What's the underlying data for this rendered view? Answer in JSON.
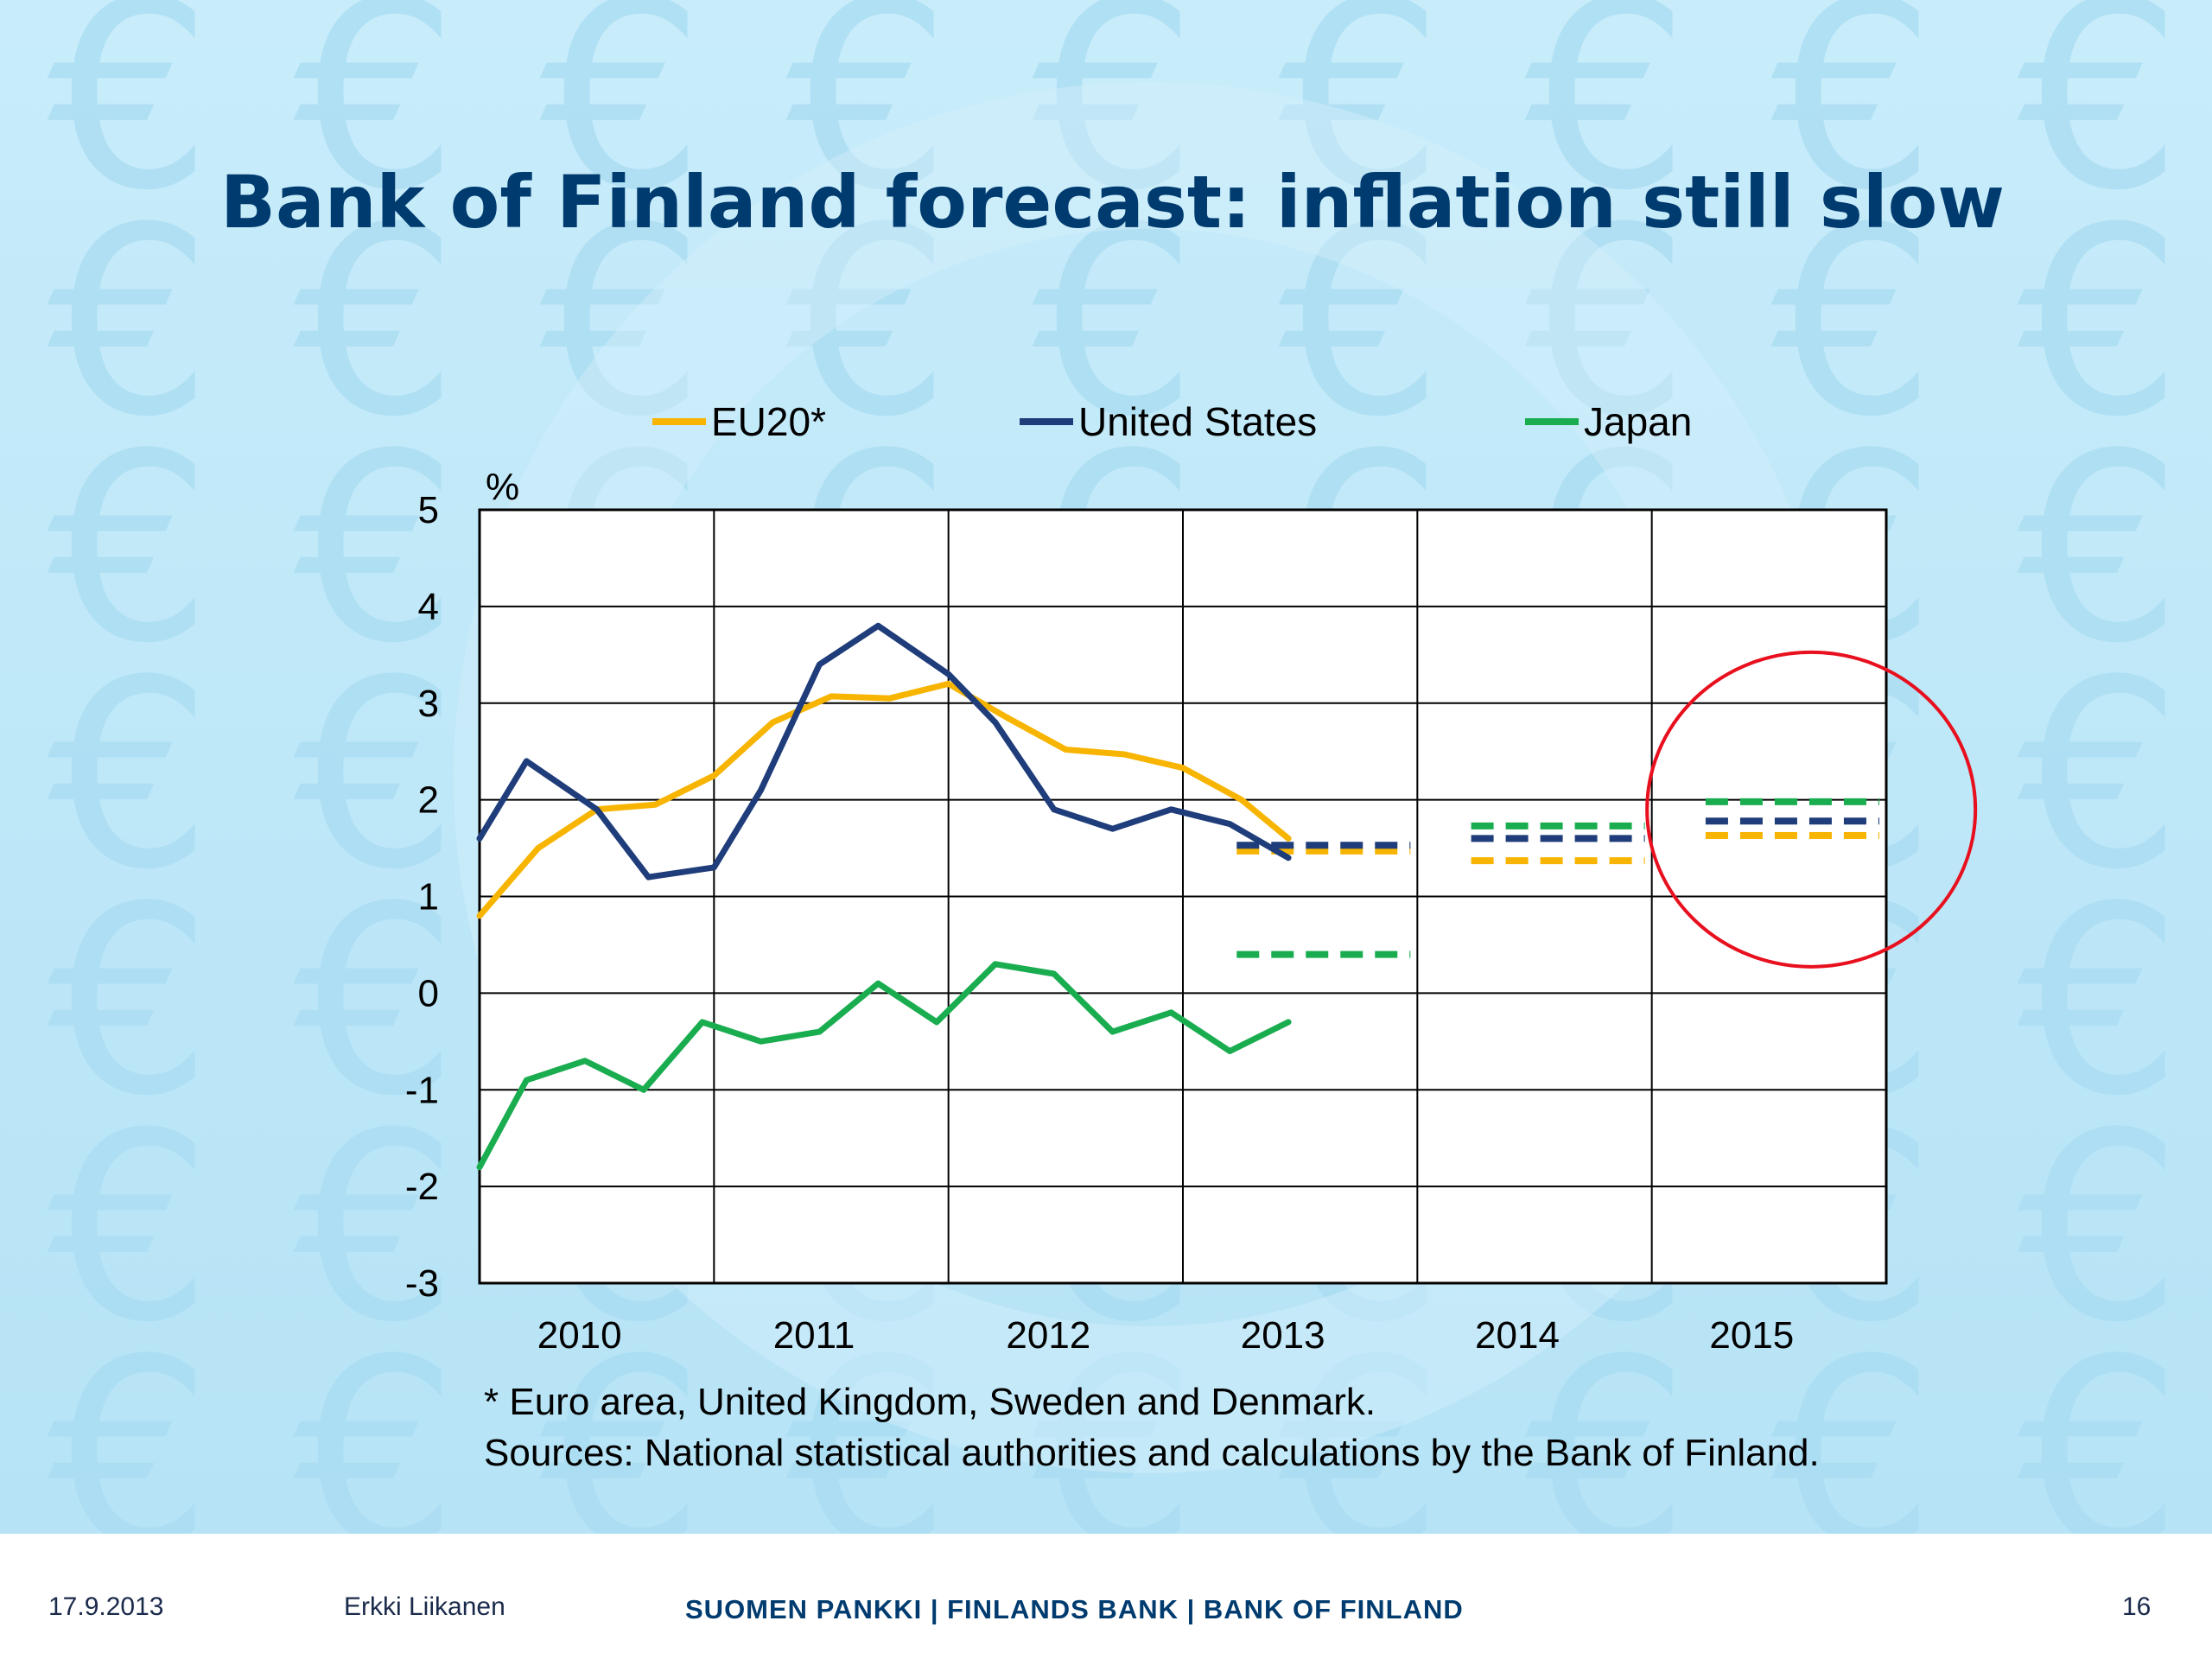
{
  "slide": {
    "title": "Bank of Finland forecast: inflation still slow",
    "footnote": "* Euro area, United Kingdom, Sweden and Denmark.",
    "sources": "Sources: National statistical authorities and calculations by the Bank of Finland."
  },
  "footer": {
    "date": "17.9.2013",
    "author": "Erkki Liikanen",
    "organization": "SUOMEN PANKKI | FINLANDS BANK | BANK OF FINLAND",
    "page_number": "16"
  },
  "background_icon": "euro-sign-pattern",
  "chart_data": {
    "type": "line",
    "title": "",
    "ylabel": "%",
    "xlabel": "",
    "ylim": [
      -3,
      5
    ],
    "xlim": [
      2010,
      2016
    ],
    "yticks": [
      "5",
      "4",
      "3",
      "2",
      "1",
      "0",
      "-1",
      "-2",
      "-3"
    ],
    "xticks": [
      "2010",
      "2011",
      "2012",
      "2013",
      "2014",
      "2015"
    ],
    "grid": true,
    "legend_position": "top",
    "highlight": {
      "type": "circle",
      "around": "2015 forecasts",
      "color": "#e8101e"
    },
    "series": [
      {
        "name": "EU20*",
        "color": "#f7b400",
        "x": [
          2010.0,
          2010.25,
          2010.5,
          2010.75,
          2011.0,
          2011.25,
          2011.5,
          2011.75,
          2012.0,
          2012.25,
          2012.5,
          2012.75,
          2013.0,
          2013.25,
          2013.45
        ],
        "values": [
          0.8,
          1.5,
          1.9,
          1.95,
          2.25,
          2.8,
          3.07,
          3.05,
          3.2,
          2.85,
          2.52,
          2.47,
          2.33,
          2.0,
          1.6
        ]
      },
      {
        "name": "United States",
        "color": "#1f3d7a",
        "x": [
          2010.0,
          2010.2,
          2010.5,
          2010.72,
          2011.0,
          2011.2,
          2011.45,
          2011.7,
          2012.0,
          2012.2,
          2012.45,
          2012.7,
          2012.95,
          2013.2,
          2013.45
        ],
        "values": [
          1.6,
          2.4,
          1.9,
          1.2,
          1.3,
          2.1,
          3.4,
          3.8,
          3.3,
          2.8,
          1.9,
          1.7,
          1.9,
          1.75,
          1.4
        ]
      },
      {
        "name": "Japan",
        "color": "#1aad50",
        "x": [
          2010.0,
          2010.2,
          2010.45,
          2010.7,
          2010.95,
          2011.2,
          2011.45,
          2011.7,
          2011.95,
          2012.2,
          2012.45,
          2012.7,
          2012.95,
          2013.2,
          2013.45
        ],
        "values": [
          -1.8,
          -0.9,
          -0.7,
          -1.0,
          -0.3,
          -0.5,
          -0.4,
          0.1,
          -0.3,
          0.3,
          0.2,
          -0.4,
          -0.2,
          -0.6,
          -0.3
        ]
      }
    ],
    "forecasts": [
      {
        "series": "EU20*",
        "year": "2013",
        "x_start": 3.2,
        "x_end": 4.0,
        "value": 1.47
      },
      {
        "series": "United States",
        "year": "2013",
        "x_start": 3.2,
        "x_end": 4.0,
        "value": 1.53
      },
      {
        "series": "Japan",
        "year": "2013",
        "x_start": 3.2,
        "x_end": 4.0,
        "value": 0.4
      },
      {
        "series": "EU20*",
        "year": "2014",
        "x_start": 4.2,
        "x_end": 5.0,
        "value": 1.37
      },
      {
        "series": "United States",
        "year": "2014",
        "x_start": 4.2,
        "x_end": 5.0,
        "value": 1.6
      },
      {
        "series": "Japan",
        "year": "2014",
        "x_start": 4.2,
        "x_end": 5.0,
        "value": 1.73
      },
      {
        "series": "EU20*",
        "year": "2015",
        "x_start": 5.2,
        "x_end": 6.0,
        "value": 1.63
      },
      {
        "series": "United States",
        "year": "2015",
        "x_start": 5.2,
        "x_end": 6.0,
        "value": 1.78
      },
      {
        "series": "Japan",
        "year": "2015",
        "x_start": 5.2,
        "x_end": 6.0,
        "value": 1.98
      }
    ]
  }
}
